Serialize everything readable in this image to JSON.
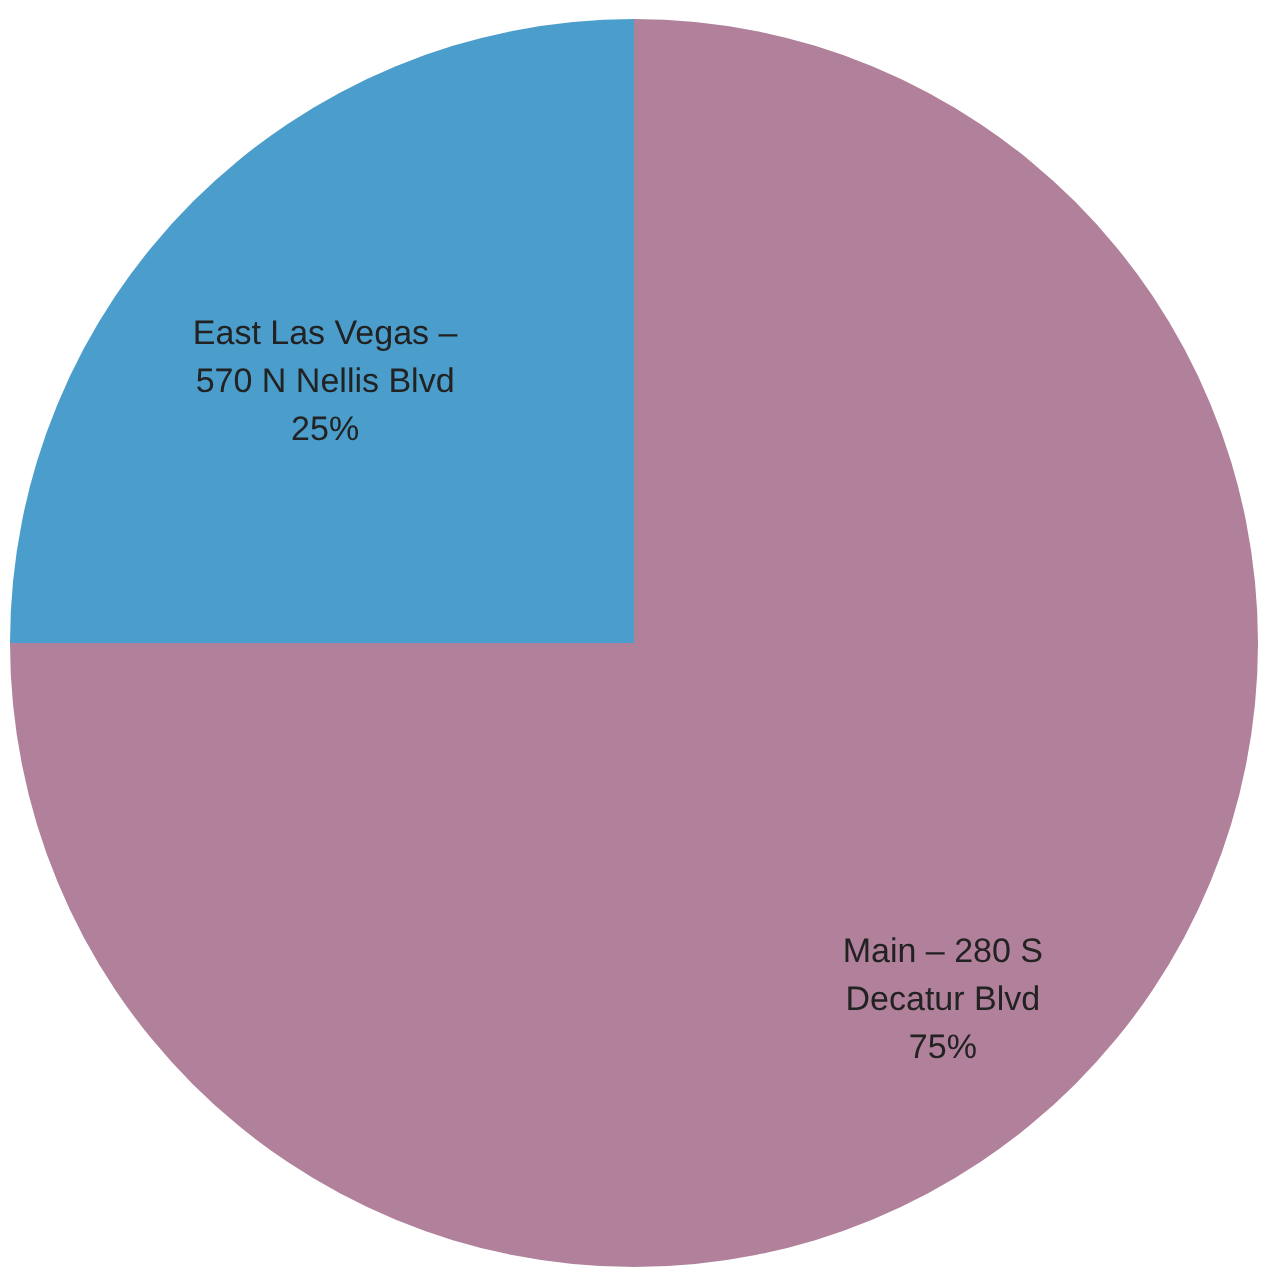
{
  "chart_data": {
    "type": "pie",
    "categories": [
      "East Las Vegas – 570 N Nellis Blvd",
      "Main – 280 S Decatur Blvd"
    ],
    "values": [
      25,
      75
    ],
    "colors": [
      "#4b9dcc",
      "#b1809a"
    ],
    "value_labels": [
      "25%",
      "75%"
    ]
  }
}
